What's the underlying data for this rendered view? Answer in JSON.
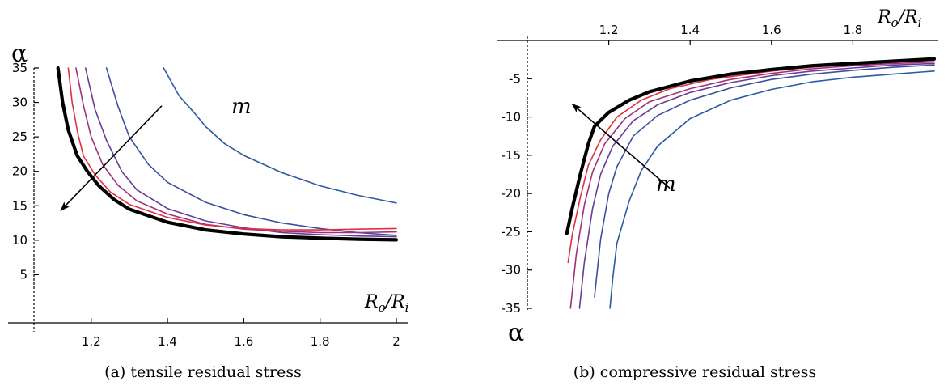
{
  "chart_data": [
    {
      "type": "line",
      "caption": "(a) tensile residual stress",
      "xlabel_base": "R",
      "xlabel_base_sub": "o",
      "xlabel_sep": "/",
      "xlabel_denom": "R",
      "xlabel_denom_sub": "i",
      "ylabel": "α",
      "arrow_label": "m",
      "xlim": [
        1.05,
        2.0
      ],
      "ylim": [
        -2,
        35
      ],
      "xticks": [
        1.2,
        1.4,
        1.6,
        1.8,
        2
      ],
      "xtick_labels": [
        "1.2",
        "1.4",
        "1.6",
        "1.8",
        "2"
      ],
      "yticks": [
        5,
        10,
        15,
        20,
        25,
        30,
        35
      ],
      "ytick_labels": [
        "5",
        "10",
        "15",
        "20",
        "25",
        "30",
        "35"
      ],
      "arrow": {
        "from": [
          1.385,
          29.5
        ],
        "to": [
          1.12,
          14.3
        ]
      },
      "series": [
        {
          "color": "#2a5aa6",
          "width": 1.6,
          "points": [
            [
              1.39,
              35
            ],
            [
              1.43,
              31
            ],
            [
              1.47,
              28.5
            ],
            [
              1.5,
              26.5
            ],
            [
              1.55,
              24
            ],
            [
              1.6,
              22.3
            ],
            [
              1.7,
              19.8
            ],
            [
              1.8,
              17.9
            ],
            [
              1.9,
              16.5
            ],
            [
              2.0,
              15.4
            ]
          ]
        },
        {
          "color": "#3d4da0",
          "width": 1.6,
          "points": [
            [
              1.24,
              35
            ],
            [
              1.27,
              29.5
            ],
            [
              1.3,
              25
            ],
            [
              1.35,
              21
            ],
            [
              1.4,
              18.4
            ],
            [
              1.5,
              15.5
            ],
            [
              1.6,
              13.7
            ],
            [
              1.7,
              12.5
            ],
            [
              1.8,
              11.7
            ],
            [
              1.9,
              11.1
            ],
            [
              2.0,
              10.7
            ]
          ]
        },
        {
          "color": "#6a3a98",
          "width": 1.6,
          "points": [
            [
              1.185,
              35
            ],
            [
              1.21,
              29
            ],
            [
              1.24,
              24.5
            ],
            [
              1.28,
              20
            ],
            [
              1.32,
              17.3
            ],
            [
              1.4,
              14.6
            ],
            [
              1.5,
              12.8
            ],
            [
              1.6,
              11.8
            ],
            [
              1.7,
              11.1
            ],
            [
              1.8,
              10.8
            ],
            [
              1.9,
              10.6
            ],
            [
              2.0,
              10.5
            ]
          ]
        },
        {
          "color": "#a0307a",
          "width": 1.6,
          "points": [
            [
              1.16,
              35
            ],
            [
              1.18,
              29.5
            ],
            [
              1.2,
              25
            ],
            [
              1.23,
              21
            ],
            [
              1.27,
              18
            ],
            [
              1.32,
              15.7
            ],
            [
              1.4,
              13.8
            ],
            [
              1.5,
              12.3
            ],
            [
              1.6,
              11.6
            ],
            [
              1.7,
              11.3
            ],
            [
              1.8,
              11.1
            ],
            [
              1.9,
              11.1
            ],
            [
              2.0,
              11.2
            ]
          ]
        },
        {
          "color": "#e03040",
          "width": 1.6,
          "points": [
            [
              1.14,
              35
            ],
            [
              1.15,
              30
            ],
            [
              1.165,
              25.5
            ],
            [
              1.18,
              22.2
            ],
            [
              1.21,
              19.5
            ],
            [
              1.25,
              17
            ],
            [
              1.3,
              15.2
            ],
            [
              1.4,
              13.3
            ],
            [
              1.5,
              12.2
            ],
            [
              1.6,
              11.7
            ],
            [
              1.7,
              11.5
            ],
            [
              1.8,
              11.5
            ],
            [
              1.9,
              11.6
            ],
            [
              2.0,
              11.7
            ]
          ]
        },
        {
          "color": "#000000",
          "width": 4.2,
          "points": [
            [
              1.113,
              35
            ],
            [
              1.125,
              30
            ],
            [
              1.14,
              26
            ],
            [
              1.163,
              22.3
            ],
            [
              1.19,
              20
            ],
            [
              1.22,
              17.9
            ],
            [
              1.26,
              15.9
            ],
            [
              1.3,
              14.5
            ],
            [
              1.4,
              12.6
            ],
            [
              1.5,
              11.5
            ],
            [
              1.6,
              10.9
            ],
            [
              1.7,
              10.5
            ],
            [
              1.8,
              10.3
            ],
            [
              1.9,
              10.15
            ],
            [
              2.0,
              10.05
            ]
          ]
        }
      ]
    },
    {
      "type": "line",
      "caption": "(b) compressive residual stress",
      "xlabel_base": "R",
      "xlabel_base_sub": "o",
      "xlabel_sep": "/",
      "xlabel_denom": "R",
      "xlabel_denom_sub": "i",
      "ylabel": "α",
      "arrow_label": "m",
      "xlim": [
        1.0,
        2.0
      ],
      "ylim": [
        -35,
        0
      ],
      "xticks": [
        1.2,
        1.4,
        1.6,
        1.8
      ],
      "xtick_labels": [
        "1.2",
        "1.4",
        "1.6",
        "1.8"
      ],
      "yticks": [
        -5,
        -10,
        -15,
        -20,
        -25,
        -30,
        -35
      ],
      "ytick_labels": [
        "-5",
        "-10",
        "-15",
        "-20",
        "-25",
        "-30",
        "-35"
      ],
      "arrow": {
        "from": [
          1.35,
          -19.3
        ],
        "to": [
          1.11,
          -8.3
        ]
      },
      "series": [
        {
          "color": "#2a5aa6",
          "width": 1.6,
          "points": [
            [
              1.203,
              -35
            ],
            [
              1.21,
              -31
            ],
            [
              1.22,
              -26.5
            ],
            [
              1.25,
              -21
            ],
            [
              1.28,
              -17
            ],
            [
              1.32,
              -13.8
            ],
            [
              1.4,
              -10.2
            ],
            [
              1.5,
              -7.8
            ],
            [
              1.6,
              -6.4
            ],
            [
              1.7,
              -5.4
            ],
            [
              1.8,
              -4.8
            ],
            [
              1.9,
              -4.4
            ],
            [
              2.0,
              -4.0
            ]
          ]
        },
        {
          "color": "#3d4da0",
          "width": 1.6,
          "points": [
            [
              1.165,
              -33.5
            ],
            [
              1.18,
              -26
            ],
            [
              1.2,
              -20
            ],
            [
              1.22,
              -16.5
            ],
            [
              1.26,
              -12.5
            ],
            [
              1.32,
              -9.8
            ],
            [
              1.4,
              -7.8
            ],
            [
              1.5,
              -6.2
            ],
            [
              1.6,
              -5.1
            ],
            [
              1.7,
              -4.4
            ],
            [
              1.8,
              -3.9
            ],
            [
              1.9,
              -3.5
            ],
            [
              2.0,
              -3.2
            ]
          ]
        },
        {
          "color": "#6a3a98",
          "width": 1.6,
          "points": [
            [
              1.128,
              -35
            ],
            [
              1.14,
              -29
            ],
            [
              1.16,
              -22
            ],
            [
              1.18,
              -17.5
            ],
            [
              1.21,
              -13.8
            ],
            [
              1.26,
              -10.5
            ],
            [
              1.32,
              -8.4
            ],
            [
              1.4,
              -6.8
            ],
            [
              1.5,
              -5.5
            ],
            [
              1.6,
              -4.6
            ],
            [
              1.7,
              -4.0
            ],
            [
              1.8,
              -3.6
            ],
            [
              1.9,
              -3.2
            ],
            [
              2.0,
              -3.0
            ]
          ]
        },
        {
          "color": "#a0307a",
          "width": 1.6,
          "points": [
            [
              1.106,
              -35
            ],
            [
              1.12,
              -28
            ],
            [
              1.14,
              -21.5
            ],
            [
              1.16,
              -17.2
            ],
            [
              1.19,
              -13.5
            ],
            [
              1.24,
              -10.2
            ],
            [
              1.3,
              -8.0
            ],
            [
              1.4,
              -6.3
            ],
            [
              1.5,
              -5.1
            ],
            [
              1.6,
              -4.3
            ],
            [
              1.7,
              -3.7
            ],
            [
              1.8,
              -3.3
            ],
            [
              1.9,
              -3.0
            ],
            [
              2.0,
              -2.8
            ]
          ]
        },
        {
          "color": "#e03040",
          "width": 1.6,
          "points": [
            [
              1.1,
              -29
            ],
            [
              1.11,
              -25.5
            ],
            [
              1.13,
              -20.5
            ],
            [
              1.15,
              -16.3
            ],
            [
              1.18,
              -13
            ],
            [
              1.22,
              -10
            ],
            [
              1.28,
              -7.8
            ],
            [
              1.35,
              -6.3
            ],
            [
              1.45,
              -5.1
            ],
            [
              1.6,
              -4.0
            ],
            [
              1.7,
              -3.5
            ],
            [
              1.8,
              -3.1
            ],
            [
              1.9,
              -2.8
            ],
            [
              2.0,
              -2.6
            ]
          ]
        },
        {
          "color": "#000000",
          "width": 4.2,
          "points": [
            [
              1.097,
              -25.2
            ],
            [
              1.11,
              -22
            ],
            [
              1.13,
              -17.5
            ],
            [
              1.15,
              -13.5
            ],
            [
              1.165,
              -11.2
            ],
            [
              1.2,
              -9.4
            ],
            [
              1.25,
              -7.8
            ],
            [
              1.3,
              -6.7
            ],
            [
              1.4,
              -5.3
            ],
            [
              1.5,
              -4.4
            ],
            [
              1.6,
              -3.8
            ],
            [
              1.7,
              -3.3
            ],
            [
              1.8,
              -3.0
            ],
            [
              1.9,
              -2.7
            ],
            [
              2.0,
              -2.4
            ]
          ]
        }
      ]
    }
  ]
}
